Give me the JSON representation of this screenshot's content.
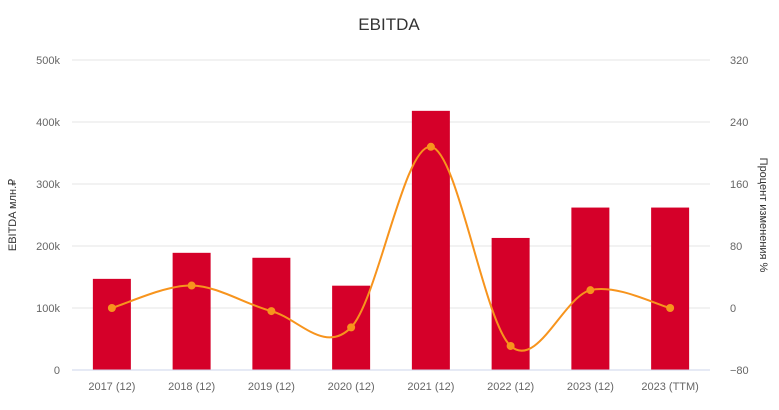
{
  "chart_data": {
    "type": "bar",
    "title": "EBITDA",
    "categories": [
      "2017 (12)",
      "2018 (12)",
      "2019 (12)",
      "2020 (12)",
      "2021 (12)",
      "2022 (12)",
      "2023 (12)",
      "2023 (TTM)"
    ],
    "series": [
      {
        "name": "EBITDA млн.₽",
        "type": "bar",
        "axis": "left",
        "color": "#d50029",
        "values": [
          147000,
          189000,
          181000,
          136000,
          418000,
          213000,
          262000,
          262000
        ]
      },
      {
        "name": "Процент изменения %",
        "type": "line",
        "axis": "right",
        "color": "#f7941d",
        "values": [
          0,
          29,
          -4,
          -25,
          208,
          -49,
          23,
          0
        ]
      }
    ],
    "ylabel": "EBITDA млн.₽",
    "y2label": "Процент изменения %",
    "ylim": [
      0,
      500000
    ],
    "y2lim": [
      -80,
      320
    ],
    "yticks": [
      "0",
      "100k",
      "200k",
      "300k",
      "400k",
      "500k"
    ],
    "y2ticks": [
      "−80",
      "0",
      "80",
      "160",
      "240",
      "320"
    ],
    "grid": true
  }
}
